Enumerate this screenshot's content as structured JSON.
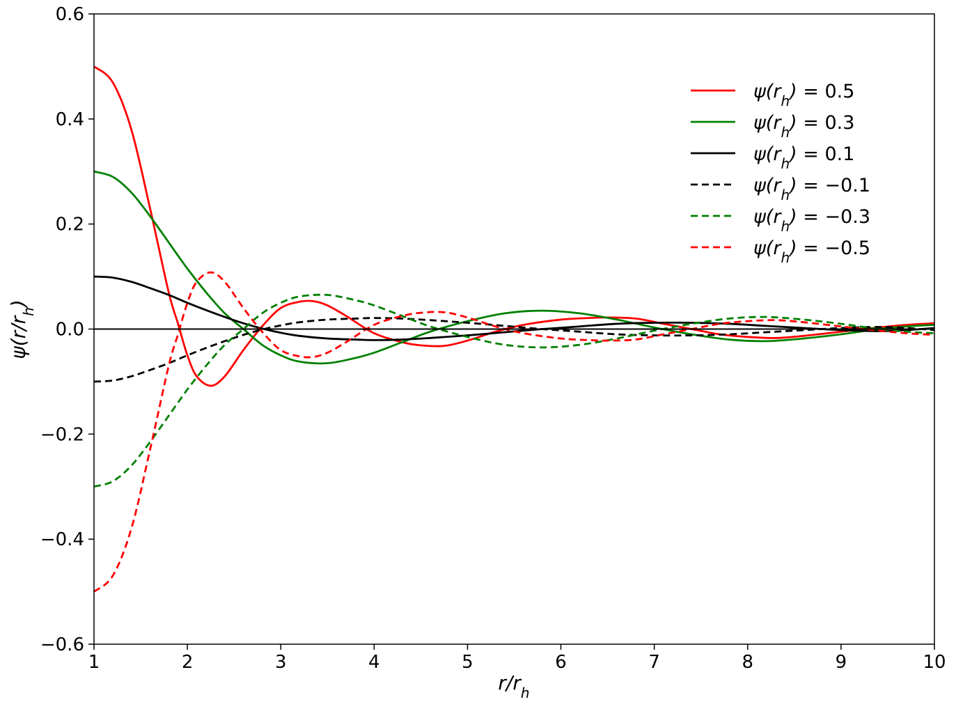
{
  "chart_data": {
    "type": "line",
    "title": "",
    "xlabel": "r/r_h",
    "ylabel": "ψ(r/r_h)",
    "xlim": [
      1,
      10
    ],
    "ylim": [
      -0.6,
      0.6
    ],
    "xticks": [
      1,
      2,
      3,
      4,
      5,
      6,
      7,
      8,
      9,
      10
    ],
    "xtick_labels": [
      "1",
      "2",
      "3",
      "4",
      "5",
      "6",
      "7",
      "8",
      "9",
      "10"
    ],
    "yticks": [
      -0.6,
      -0.4,
      -0.2,
      0.0,
      0.2,
      0.4,
      0.6
    ],
    "ytick_labels": [
      "−0.6",
      "−0.4",
      "−0.2",
      "0.0",
      "0.2",
      "0.4",
      "0.6"
    ],
    "grid": false,
    "legend_position": "top-right",
    "zero_line": {
      "y": 0,
      "color": "#000000"
    },
    "series": [
      {
        "name": "ψ(r_h) = 0.5",
        "color": "#ff0000",
        "style": "solid",
        "x": [
          1.0,
          1.2,
          1.4,
          1.6,
          1.8,
          1.9,
          2.0,
          2.1,
          2.25,
          2.4,
          2.6,
          2.8,
          3.0,
          3.2,
          3.35,
          3.5,
          3.7,
          4.0,
          4.3,
          4.5,
          4.75,
          5.0,
          5.3,
          5.6,
          6.0,
          6.3,
          6.5,
          6.8,
          7.1,
          7.4,
          7.7,
          8.0,
          8.3,
          8.6,
          9.0,
          9.4,
          9.7,
          10.0
        ],
        "y": [
          0.5,
          0.47,
          0.38,
          0.23,
          0.07,
          0.01,
          -0.05,
          -0.09,
          -0.108,
          -0.09,
          -0.04,
          0.005,
          0.04,
          0.052,
          0.053,
          0.045,
          0.025,
          -0.008,
          -0.025,
          -0.031,
          -0.032,
          -0.022,
          -0.005,
          0.008,
          0.018,
          0.021,
          0.022,
          0.02,
          0.01,
          0.0,
          -0.01,
          -0.015,
          -0.017,
          -0.013,
          -0.005,
          0.003,
          0.008,
          0.011
        ]
      },
      {
        "name": "ψ(r_h) = 0.3",
        "color": "#008000",
        "style": "solid",
        "x": [
          1.0,
          1.2,
          1.4,
          1.6,
          1.8,
          2.0,
          2.2,
          2.4,
          2.6,
          2.8,
          3.0,
          3.2,
          3.5,
          3.8,
          4.0,
          4.3,
          4.6,
          5.0,
          5.4,
          5.8,
          6.2,
          6.6,
          7.0,
          7.4,
          7.8,
          8.2,
          8.6,
          9.0,
          9.4,
          9.7,
          10.0
        ],
        "y": [
          0.3,
          0.29,
          0.26,
          0.215,
          0.165,
          0.115,
          0.07,
          0.03,
          0.0,
          -0.03,
          -0.05,
          -0.062,
          -0.065,
          -0.055,
          -0.045,
          -0.025,
          -0.005,
          0.015,
          0.03,
          0.035,
          0.03,
          0.018,
          0.003,
          -0.01,
          -0.02,
          -0.023,
          -0.018,
          -0.01,
          0.0,
          0.005,
          0.008
        ]
      },
      {
        "name": "ψ(r_h) = 0.1",
        "color": "#000000",
        "style": "solid",
        "x": [
          1.0,
          1.2,
          1.4,
          1.6,
          1.8,
          2.0,
          2.2,
          2.4,
          2.6,
          2.8,
          3.0,
          3.2,
          3.5,
          3.8,
          4.0,
          4.3,
          4.6,
          5.0,
          5.4,
          5.8,
          6.2,
          6.6,
          7.0,
          7.4,
          7.8,
          8.2,
          8.6,
          9.0,
          9.4,
          9.7,
          10.0
        ],
        "y": [
          0.1,
          0.098,
          0.09,
          0.078,
          0.065,
          0.05,
          0.036,
          0.023,
          0.011,
          0.001,
          -0.007,
          -0.013,
          -0.018,
          -0.02,
          -0.021,
          -0.02,
          -0.017,
          -0.012,
          -0.006,
          0.0,
          0.005,
          0.01,
          0.012,
          0.012,
          0.01,
          0.006,
          0.002,
          -0.002,
          -0.004,
          -0.002,
          0.002
        ]
      },
      {
        "name": "ψ(r_h) = −0.1",
        "color": "#000000",
        "style": "dashed",
        "x": [
          1.0,
          1.2,
          1.4,
          1.6,
          1.8,
          2.0,
          2.2,
          2.4,
          2.6,
          2.8,
          3.0,
          3.2,
          3.5,
          3.8,
          4.0,
          4.3,
          4.6,
          5.0,
          5.4,
          5.8,
          6.2,
          6.6,
          7.0,
          7.4,
          7.8,
          8.2,
          8.6,
          9.0,
          9.4,
          9.7,
          10.0
        ],
        "y": [
          -0.1,
          -0.098,
          -0.09,
          -0.078,
          -0.065,
          -0.05,
          -0.036,
          -0.023,
          -0.011,
          -0.001,
          0.007,
          0.013,
          0.018,
          0.02,
          0.021,
          0.02,
          0.017,
          0.012,
          0.006,
          0.0,
          -0.005,
          -0.01,
          -0.012,
          -0.012,
          -0.01,
          -0.006,
          -0.002,
          0.002,
          0.004,
          0.002,
          -0.002
        ]
      },
      {
        "name": "ψ(r_h) = −0.3",
        "color": "#008000",
        "style": "dashed",
        "x": [
          1.0,
          1.2,
          1.4,
          1.6,
          1.8,
          2.0,
          2.2,
          2.4,
          2.6,
          2.8,
          3.0,
          3.2,
          3.5,
          3.8,
          4.0,
          4.3,
          4.6,
          5.0,
          5.4,
          5.8,
          6.2,
          6.6,
          7.0,
          7.4,
          7.8,
          8.2,
          8.6,
          9.0,
          9.4,
          9.7,
          10.0
        ],
        "y": [
          -0.3,
          -0.29,
          -0.26,
          -0.215,
          -0.165,
          -0.115,
          -0.07,
          -0.03,
          0.0,
          0.03,
          0.05,
          0.062,
          0.065,
          0.055,
          0.045,
          0.025,
          0.005,
          -0.015,
          -0.03,
          -0.035,
          -0.03,
          -0.018,
          -0.003,
          0.01,
          0.02,
          0.023,
          0.018,
          0.01,
          0.0,
          -0.005,
          -0.008
        ]
      },
      {
        "name": "ψ(r_h) = −0.5",
        "color": "#ff0000",
        "style": "dashed",
        "x": [
          1.0,
          1.2,
          1.4,
          1.6,
          1.8,
          1.9,
          2.0,
          2.1,
          2.25,
          2.4,
          2.6,
          2.8,
          3.0,
          3.2,
          3.35,
          3.5,
          3.7,
          4.0,
          4.3,
          4.5,
          4.75,
          5.0,
          5.3,
          5.6,
          6.0,
          6.3,
          6.5,
          6.8,
          7.1,
          7.4,
          7.7,
          8.0,
          8.3,
          8.6,
          9.0,
          9.4,
          9.7,
          10.0
        ],
        "y": [
          -0.5,
          -0.47,
          -0.38,
          -0.23,
          -0.07,
          -0.01,
          0.05,
          0.09,
          0.108,
          0.09,
          0.04,
          -0.005,
          -0.04,
          -0.052,
          -0.053,
          -0.045,
          -0.025,
          0.008,
          0.025,
          0.031,
          0.032,
          0.022,
          0.005,
          -0.008,
          -0.018,
          -0.021,
          -0.022,
          -0.02,
          -0.01,
          0.0,
          0.01,
          0.015,
          0.017,
          0.013,
          0.005,
          -0.003,
          -0.008,
          -0.011
        ]
      }
    ]
  }
}
